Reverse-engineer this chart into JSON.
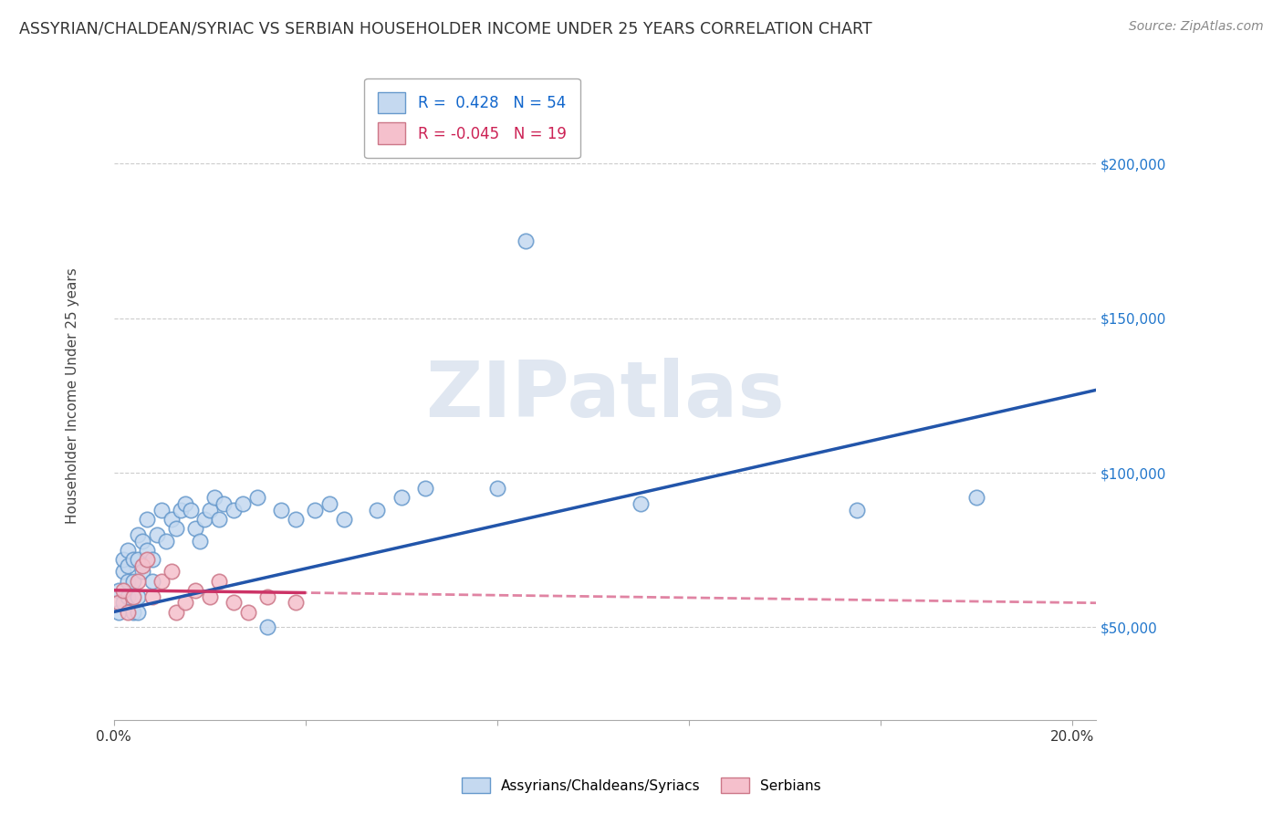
{
  "title": "ASSYRIAN/CHALDEAN/SYRIAC VS SERBIAN HOUSEHOLDER INCOME UNDER 25 YEARS CORRELATION CHART",
  "source": "Source: ZipAtlas.com",
  "ylabel": "Householder Income Under 25 years",
  "xlim": [
    0.0,
    0.205
  ],
  "ylim": [
    20000,
    230000
  ],
  "ytick_values": [
    50000,
    100000,
    150000,
    200000
  ],
  "ytick_labels": [
    "$50,000",
    "$100,000",
    "$150,000",
    "$200,000"
  ],
  "r_blue": 0.428,
  "n_blue": 54,
  "r_pink": -0.045,
  "n_pink": 19,
  "legend_label_blue": "Assyrians/Chaldeans/Syriacs",
  "legend_label_pink": "Serbians",
  "color_blue_fill": "#c5d9f0",
  "color_blue_edge": "#6699cc",
  "color_blue_line": "#2255aa",
  "color_pink_fill": "#f5c0cc",
  "color_pink_edge": "#cc7788",
  "color_pink_line": "#cc3366",
  "color_r_blue": "#1166cc",
  "color_r_pink": "#cc2255",
  "watermark": "ZIPatlas",
  "watermark_color": "#ccd8e8",
  "background_color": "#ffffff",
  "grid_color": "#cccccc",
  "ylabel_color": "#444444",
  "title_color": "#333333",
  "ytick_color": "#2277cc",
  "spine_color": "#aaaaaa",
  "blue_x": [
    0.001,
    0.001,
    0.002,
    0.002,
    0.002,
    0.003,
    0.003,
    0.003,
    0.003,
    0.004,
    0.004,
    0.004,
    0.005,
    0.005,
    0.005,
    0.005,
    0.006,
    0.006,
    0.007,
    0.007,
    0.008,
    0.008,
    0.009,
    0.01,
    0.011,
    0.012,
    0.013,
    0.014,
    0.015,
    0.016,
    0.017,
    0.018,
    0.019,
    0.02,
    0.021,
    0.022,
    0.023,
    0.025,
    0.027,
    0.03,
    0.032,
    0.035,
    0.038,
    0.042,
    0.045,
    0.048,
    0.055,
    0.06,
    0.065,
    0.08,
    0.11,
    0.155,
    0.18,
    0.086
  ],
  "blue_y": [
    62000,
    55000,
    68000,
    58000,
    72000,
    65000,
    75000,
    60000,
    70000,
    72000,
    65000,
    55000,
    80000,
    72000,
    60000,
    55000,
    78000,
    68000,
    85000,
    75000,
    72000,
    65000,
    80000,
    88000,
    78000,
    85000,
    82000,
    88000,
    90000,
    88000,
    82000,
    78000,
    85000,
    88000,
    92000,
    85000,
    90000,
    88000,
    90000,
    92000,
    50000,
    88000,
    85000,
    88000,
    90000,
    85000,
    88000,
    92000,
    95000,
    95000,
    90000,
    88000,
    92000,
    175000
  ],
  "pink_x": [
    0.001,
    0.002,
    0.003,
    0.004,
    0.005,
    0.006,
    0.007,
    0.008,
    0.01,
    0.012,
    0.013,
    0.015,
    0.017,
    0.02,
    0.022,
    0.025,
    0.028,
    0.032,
    0.038
  ],
  "pink_y": [
    58000,
    62000,
    55000,
    60000,
    65000,
    70000,
    72000,
    60000,
    65000,
    68000,
    55000,
    58000,
    62000,
    60000,
    65000,
    58000,
    55000,
    60000,
    58000
  ]
}
